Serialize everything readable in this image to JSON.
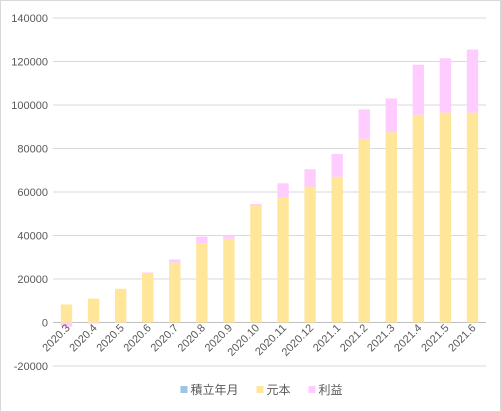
{
  "chart_data": {
    "type": "bar",
    "stacked": true,
    "categories": [
      "2020.3",
      "2020.4",
      "2020.5",
      "2020.6",
      "2020.7",
      "2020.8",
      "2020.9",
      "2020.10",
      "2020.11",
      "2020.12",
      "2021.1",
      "2021.2",
      "2021.3",
      "2021.4",
      "2021.5",
      "2021.6"
    ],
    "series": [
      {
        "name": "積立年月",
        "color": "#9dc3e6",
        "values": [
          0,
          0,
          0,
          0,
          0,
          0,
          0,
          0,
          0,
          0,
          0,
          0,
          0,
          0,
          0,
          0
        ]
      },
      {
        "name": "元本",
        "color": "#ffe699",
        "values": [
          8300,
          11000,
          15500,
          22500,
          27500,
          36500,
          38500,
          54000,
          57500,
          62500,
          67000,
          84500,
          87500,
          95500,
          96500,
          96500
        ]
      },
      {
        "name": "利益",
        "color": "#ffccff",
        "values": [
          -2000,
          -500,
          -100,
          500,
          1500,
          3000,
          1500,
          500,
          6500,
          8000,
          10500,
          13500,
          15500,
          23000,
          25000,
          29000
        ]
      }
    ],
    "ylim": [
      -20000,
      140000
    ],
    "yticks": [
      -20000,
      0,
      20000,
      40000,
      60000,
      80000,
      100000,
      120000,
      140000
    ],
    "grid": true,
    "legend": "bottom"
  }
}
